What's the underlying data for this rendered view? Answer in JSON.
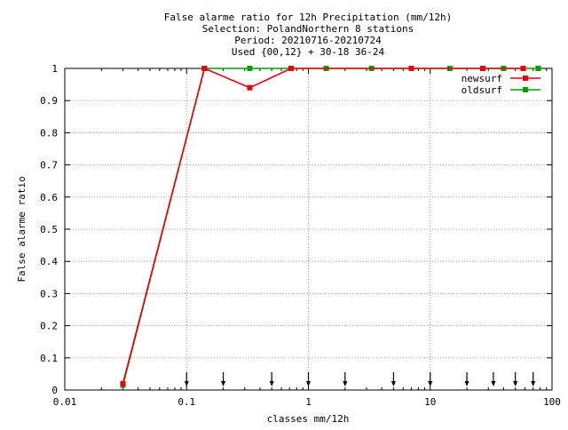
{
  "chart_data": {
    "type": "line",
    "title_lines": [
      "False alarme ratio  for 12h Precipitation (mm/12h)",
      "Selection: PolandNorthern      8 stations",
      "Period: 20210716-20210724",
      "Used {00,12} + 30-18 36-24"
    ],
    "xlabel": "classes mm/12h",
    "ylabel": "False alarme ratio",
    "x_scale": "log",
    "xlim": [
      0.01,
      100
    ],
    "ylim": [
      0,
      1
    ],
    "x_ticks": [
      0.01,
      0.1,
      1,
      10,
      100
    ],
    "x_tick_labels": [
      "0.01",
      "0.1",
      "1",
      "10",
      "100"
    ],
    "y_ticks": [
      0,
      0.1,
      0.2,
      0.3,
      0.4,
      0.5,
      0.6,
      0.7,
      0.8,
      0.9,
      1
    ],
    "y_tick_labels": [
      "0",
      "0.1",
      "0.2",
      "0.3",
      "0.4",
      "0.5",
      "0.6",
      "0.7",
      "0.8",
      "0.9",
      "1"
    ],
    "grid": true,
    "legend_position": "top-right",
    "series": [
      {
        "name": "newsurf",
        "color": "#e8000b",
        "x": [
          0.03,
          0.14,
          0.33,
          0.72,
          7.0,
          27.0,
          58.0
        ],
        "y": [
          0.02,
          1.0,
          0.94,
          1.0,
          1.0,
          1.0,
          1.0
        ]
      },
      {
        "name": "oldsurf",
        "color": "#00a000",
        "x": [
          0.03,
          0.14,
          0.33,
          0.72,
          1.4,
          3.3,
          7.0,
          14.5,
          27.0,
          40.0,
          58.0,
          77.0
        ],
        "y": [
          0.015,
          1.0,
          1.0,
          1.0,
          1.0,
          1.0,
          1.0,
          1.0,
          1.0,
          1.0,
          1.0,
          1.0
        ]
      }
    ],
    "class_arrows_x": [
      0.1,
      0.2,
      0.5,
      1,
      2,
      5,
      10,
      20,
      33,
      50,
      70
    ]
  }
}
